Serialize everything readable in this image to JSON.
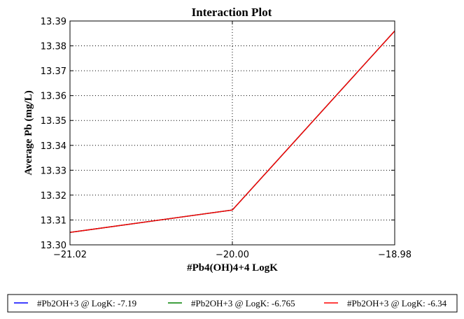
{
  "chart_data": {
    "type": "line",
    "title": "Interaction Plot",
    "xlabel": "#Pb4(OH)4+4 LogK",
    "ylabel": "Average Pb (mg/L)",
    "x": [
      -21.02,
      -20.0,
      -18.98
    ],
    "xticks": [
      "−21.02",
      "−20.00",
      "−18.98"
    ],
    "xlim": [
      -21.02,
      -18.98
    ],
    "ylim": [
      13.3,
      13.39
    ],
    "yticks": [
      "13.30",
      "13.31",
      "13.32",
      "13.33",
      "13.34",
      "13.35",
      "13.36",
      "13.37",
      "13.38",
      "13.39"
    ],
    "grid": true,
    "legend_position": "bottom",
    "series": [
      {
        "name": "#Pb2OH+3 @ LogK: -7.19",
        "color": "#0000ff",
        "values": [
          13.305,
          13.314,
          13.386
        ]
      },
      {
        "name": "#Pb2OH+3 @ LogK: -6.765",
        "color": "#008000",
        "values": [
          13.305,
          13.314,
          13.386
        ]
      },
      {
        "name": "#Pb2OH+3 @ LogK: -6.34",
        "color": "#ff0000",
        "values": [
          13.305,
          13.314,
          13.386
        ]
      }
    ]
  }
}
